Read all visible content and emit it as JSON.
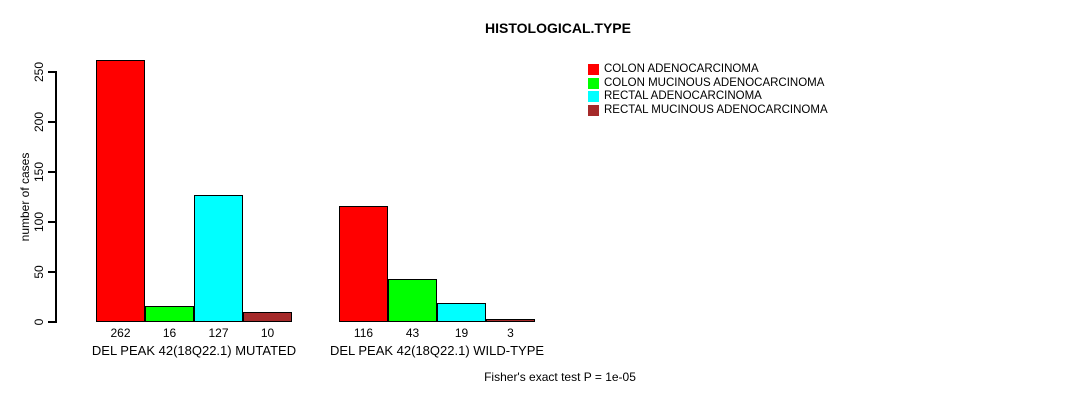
{
  "chart_data": {
    "type": "bar",
    "title": "HISTOLOGICAL.TYPE",
    "ylabel": "number of cases",
    "xlabel": "",
    "categories": [
      "DEL PEAK 42(18Q22.1) MUTATED",
      "DEL PEAK 42(18Q22.1) WILD-TYPE"
    ],
    "series": [
      {
        "name": "COLON ADENOCARCINOMA",
        "color": "#FF0000",
        "values": [
          262,
          116
        ]
      },
      {
        "name": "COLON MUCINOUS ADENOCARCINOMA",
        "color": "#00FF00",
        "values": [
          16,
          43
        ]
      },
      {
        "name": "RECTAL ADENOCARCINOMA",
        "color": "#00FFFF",
        "values": [
          127,
          19
        ]
      },
      {
        "name": "RECTAL MUCINOUS ADENOCARCINOMA",
        "color": "#A52A2A",
        "values": [
          10,
          3
        ]
      }
    ],
    "yticks": [
      0,
      50,
      100,
      150,
      200,
      250
    ],
    "ylim": [
      0,
      250
    ],
    "grid": false,
    "legend_position": "top-right",
    "bar_value_labels": [
      [
        262,
        16,
        127,
        10
      ],
      [
        116,
        43,
        19,
        3
      ]
    ],
    "annotation": "Fisher's exact test P = 1e-05"
  }
}
